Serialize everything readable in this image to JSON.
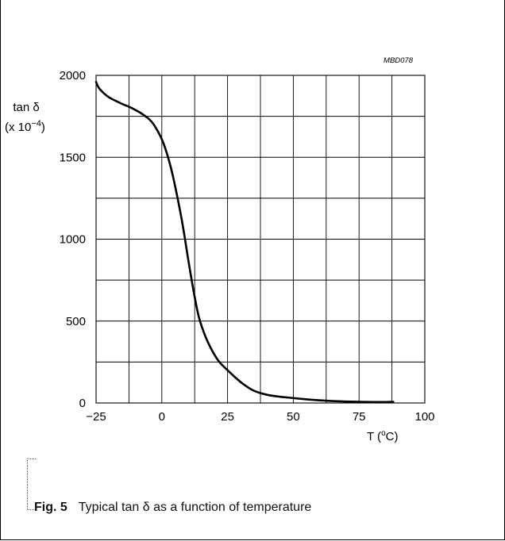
{
  "figure_code": "MBD078",
  "caption": {
    "fig_label": "Fig. 5",
    "text": "Typical tan δ as a function of temperature"
  },
  "chart_data": {
    "type": "line",
    "title": "",
    "ylabel_line1": "tan δ",
    "ylabel_line2": "(x 10",
    "ylabel_exp": "−4",
    "ylabel_close": ")",
    "xlabel": "T  (",
    "xlabel_sup": "o",
    "xlabel_unit": "C)",
    "xlim": [
      -25,
      100
    ],
    "ylim": [
      0,
      2000
    ],
    "x_ticks": [
      -25,
      0,
      25,
      50,
      75,
      100
    ],
    "x_tick_labels": [
      "−25",
      "0",
      "25",
      "50",
      "75",
      "100"
    ],
    "y_ticks": [
      0,
      500,
      1000,
      1500,
      2000
    ],
    "y_tick_labels": [
      "0",
      "500",
      "1000",
      "1500",
      "2000"
    ],
    "x_grid_step": 12.5,
    "y_grid_step": 250,
    "grid": true,
    "series": [
      {
        "color": "#000000",
        "x": [
          -25,
          -24,
          -22,
          -20,
          -18,
          -15,
          -12,
          -10,
          -8,
          -5,
          -3,
          0,
          2,
          4,
          6,
          8,
          10,
          12,
          14,
          16,
          18,
          20,
          22,
          25,
          28,
          31,
          35,
          40,
          45,
          50,
          55,
          60,
          65,
          70,
          75,
          80,
          85,
          88
        ],
        "y": [
          1960,
          1925,
          1890,
          1865,
          1848,
          1825,
          1805,
          1788,
          1770,
          1735,
          1698,
          1610,
          1520,
          1400,
          1250,
          1080,
          880,
          690,
          530,
          430,
          355,
          295,
          248,
          200,
          155,
          115,
          75,
          50,
          38,
          30,
          22,
          16,
          12,
          9,
          7,
          6,
          6,
          7
        ]
      }
    ]
  }
}
